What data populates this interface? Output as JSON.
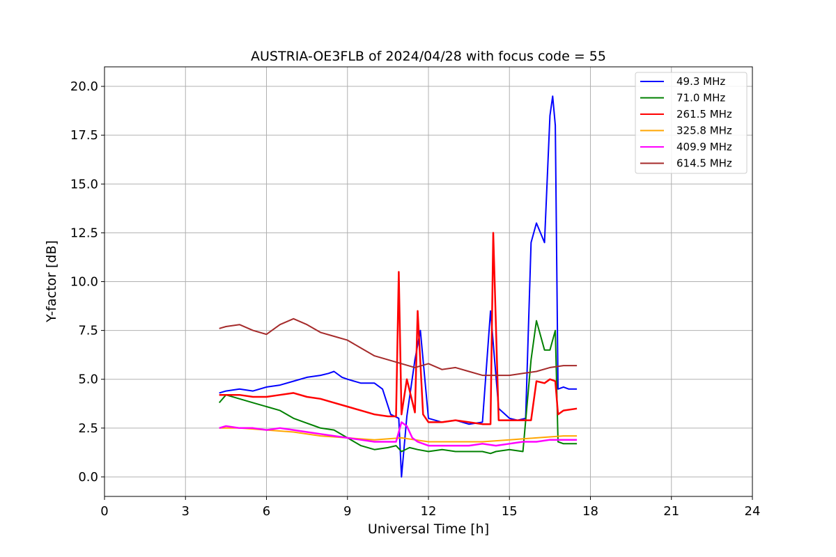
{
  "chart_data": {
    "type": "line",
    "title": "AUSTRIA-OE3FLB of 2024/04/28 with focus code = 55",
    "xlabel": "Universal Time [h]",
    "ylabel": "Y-factor [dB]",
    "xlim": [
      0,
      24
    ],
    "ylim": [
      -1,
      21
    ],
    "xticks": [
      0,
      3,
      6,
      9,
      12,
      15,
      18,
      21,
      24
    ],
    "xtick_labels": [
      "0",
      "3",
      "6",
      "9",
      "12",
      "15",
      "18",
      "21",
      "24"
    ],
    "yticks": [
      0,
      2.5,
      5,
      7.5,
      10,
      12.5,
      15,
      17.5,
      20
    ],
    "ytick_labels": [
      "0.0",
      "2.5",
      "5.0",
      "7.5",
      "10.0",
      "12.5",
      "15.0",
      "17.5",
      "20.0"
    ],
    "grid": true,
    "legend_position": "top-right",
    "series": [
      {
        "name": " 49.3 MHz",
        "color": "#0000ff",
        "x": [
          4.25,
          4.5,
          5.0,
          5.5,
          6.0,
          6.5,
          7.0,
          7.5,
          8.0,
          8.3,
          8.5,
          8.8,
          9.0,
          9.5,
          10.0,
          10.3,
          10.6,
          10.9,
          11.0,
          11.2,
          11.5,
          11.7,
          12.0,
          12.5,
          13.0,
          13.5,
          14.0,
          14.3,
          14.6,
          15.0,
          15.3,
          15.6,
          15.8,
          16.0,
          16.3,
          16.5,
          16.6,
          16.7,
          16.8,
          17.0,
          17.2,
          17.5
        ],
        "y": [
          4.3,
          4.4,
          4.5,
          4.4,
          4.6,
          4.7,
          4.9,
          5.1,
          5.2,
          5.3,
          5.4,
          5.1,
          5.0,
          4.8,
          4.8,
          4.5,
          3.2,
          3.0,
          0.0,
          3.1,
          6.0,
          7.5,
          3.0,
          2.8,
          2.9,
          2.7,
          2.8,
          8.5,
          3.5,
          3.0,
          2.9,
          3.0,
          12.0,
          13.0,
          12.0,
          18.5,
          19.5,
          18.0,
          4.5,
          4.6,
          4.5,
          4.5
        ]
      },
      {
        "name": " 71.0 MHz",
        "color": "#008000",
        "x": [
          4.25,
          4.5,
          5.0,
          5.5,
          6.0,
          6.5,
          7.0,
          7.4,
          7.8,
          8.0,
          8.5,
          9.0,
          9.5,
          10.0,
          10.5,
          10.8,
          11.0,
          11.3,
          11.6,
          12.0,
          12.5,
          13.0,
          13.5,
          14.0,
          14.3,
          14.5,
          15.0,
          15.5,
          15.8,
          16.0,
          16.3,
          16.5,
          16.7,
          16.8,
          17.0,
          17.5
        ],
        "y": [
          3.8,
          4.2,
          4.0,
          3.8,
          3.6,
          3.4,
          3.0,
          2.8,
          2.6,
          2.5,
          2.4,
          2.0,
          1.6,
          1.4,
          1.5,
          1.6,
          1.3,
          1.5,
          1.4,
          1.3,
          1.4,
          1.3,
          1.3,
          1.3,
          1.2,
          1.3,
          1.4,
          1.3,
          6.0,
          8.0,
          6.5,
          6.5,
          7.5,
          1.8,
          1.7,
          1.7
        ]
      },
      {
        "name": "261.5 MHz",
        "color": "#ff0000",
        "x": [
          4.25,
          4.5,
          5.0,
          5.5,
          6.0,
          6.5,
          7.0,
          7.5,
          8.0,
          8.5,
          9.0,
          9.5,
          10.0,
          10.5,
          10.8,
          10.9,
          11.0,
          11.2,
          11.5,
          11.6,
          11.8,
          12.0,
          12.5,
          13.0,
          13.5,
          14.0,
          14.3,
          14.4,
          14.6,
          15.0,
          15.5,
          15.8,
          16.0,
          16.3,
          16.5,
          16.7,
          16.8,
          17.0,
          17.5
        ],
        "y": [
          4.2,
          4.2,
          4.2,
          4.1,
          4.1,
          4.2,
          4.3,
          4.1,
          4.0,
          3.8,
          3.6,
          3.4,
          3.2,
          3.1,
          3.1,
          10.5,
          3.2,
          5.0,
          3.3,
          8.5,
          3.2,
          2.8,
          2.8,
          2.9,
          2.8,
          2.7,
          2.7,
          12.5,
          2.9,
          2.9,
          2.9,
          2.9,
          4.9,
          4.8,
          5.0,
          4.9,
          3.2,
          3.4,
          3.5
        ]
      },
      {
        "name": "325.8 MHz",
        "color": "#ffa500",
        "x": [
          4.25,
          5.0,
          6.0,
          7.0,
          8.0,
          9.0,
          10.0,
          11.0,
          12.0,
          13.0,
          14.0,
          15.0,
          16.0,
          17.0,
          17.5
        ],
        "y": [
          2.5,
          2.5,
          2.4,
          2.3,
          2.1,
          2.0,
          1.9,
          2.0,
          1.8,
          1.8,
          1.8,
          1.9,
          2.0,
          2.1,
          2.1
        ]
      },
      {
        "name": "409.9 MHz",
        "color": "#ff00ff",
        "x": [
          4.25,
          4.5,
          5.0,
          5.5,
          6.0,
          6.5,
          7.0,
          7.5,
          8.0,
          8.5,
          9.0,
          9.5,
          10.0,
          10.5,
          10.8,
          11.0,
          11.2,
          11.4,
          11.6,
          12.0,
          12.5,
          13.0,
          13.5,
          14.0,
          14.5,
          15.0,
          15.5,
          16.0,
          16.5,
          17.0,
          17.5
        ],
        "y": [
          2.5,
          2.6,
          2.5,
          2.5,
          2.4,
          2.5,
          2.4,
          2.3,
          2.2,
          2.1,
          2.0,
          1.9,
          1.8,
          1.8,
          1.8,
          2.8,
          2.6,
          2.0,
          1.8,
          1.6,
          1.6,
          1.6,
          1.6,
          1.7,
          1.6,
          1.7,
          1.8,
          1.8,
          1.9,
          1.9,
          1.9
        ]
      },
      {
        "name": "614.5 MHz",
        "color": "#a52a2a",
        "x": [
          4.25,
          4.5,
          5.0,
          5.5,
          6.0,
          6.5,
          7.0,
          7.5,
          8.0,
          8.5,
          9.0,
          9.5,
          10.0,
          10.5,
          11.0,
          11.5,
          12.0,
          12.5,
          13.0,
          13.5,
          14.0,
          14.5,
          15.0,
          15.5,
          16.0,
          16.5,
          17.0,
          17.5
        ],
        "y": [
          7.6,
          7.7,
          7.8,
          7.5,
          7.3,
          7.8,
          8.1,
          7.8,
          7.4,
          7.2,
          7.0,
          6.6,
          6.2,
          6.0,
          5.8,
          5.6,
          5.8,
          5.5,
          5.6,
          5.4,
          5.2,
          5.2,
          5.2,
          5.3,
          5.4,
          5.6,
          5.7,
          5.7
        ]
      }
    ]
  }
}
